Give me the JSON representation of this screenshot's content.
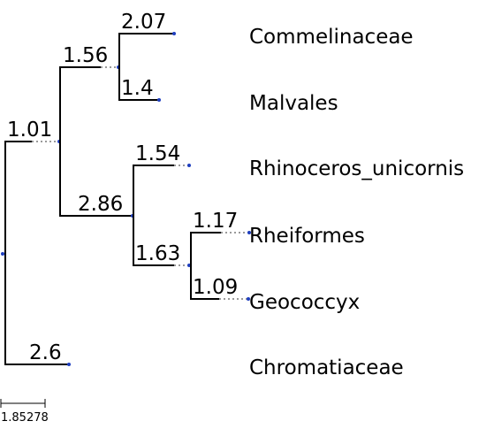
{
  "tree": {
    "leaves": [
      {
        "id": "commelinaceae",
        "name": "Commelinaceae"
      },
      {
        "id": "malvales",
        "name": "Malvales"
      },
      {
        "id": "rhinoceros",
        "name": "Rhinoceros_unicornis"
      },
      {
        "id": "rheiformes",
        "name": "Rheiformes"
      },
      {
        "id": "geococcyx",
        "name": "Geococcyx"
      },
      {
        "id": "chromatiaceae",
        "name": "Chromatiaceae"
      }
    ],
    "branch_lengths": {
      "clade_a": "1.01",
      "clade_b": "1.56",
      "commelinaceae": "2.07",
      "malvales": "1.4",
      "clade_c": "2.86",
      "rhinoceros": "1.54",
      "clade_d": "1.63",
      "rheiformes": "1.17",
      "geococcyx": "1.09",
      "chromatiaceae": "2.6"
    },
    "scale_label": "1.85278"
  },
  "colors": {
    "branch": "#000000",
    "node": "#1f3fbf",
    "dotted_guide": "#9a9a9a"
  }
}
